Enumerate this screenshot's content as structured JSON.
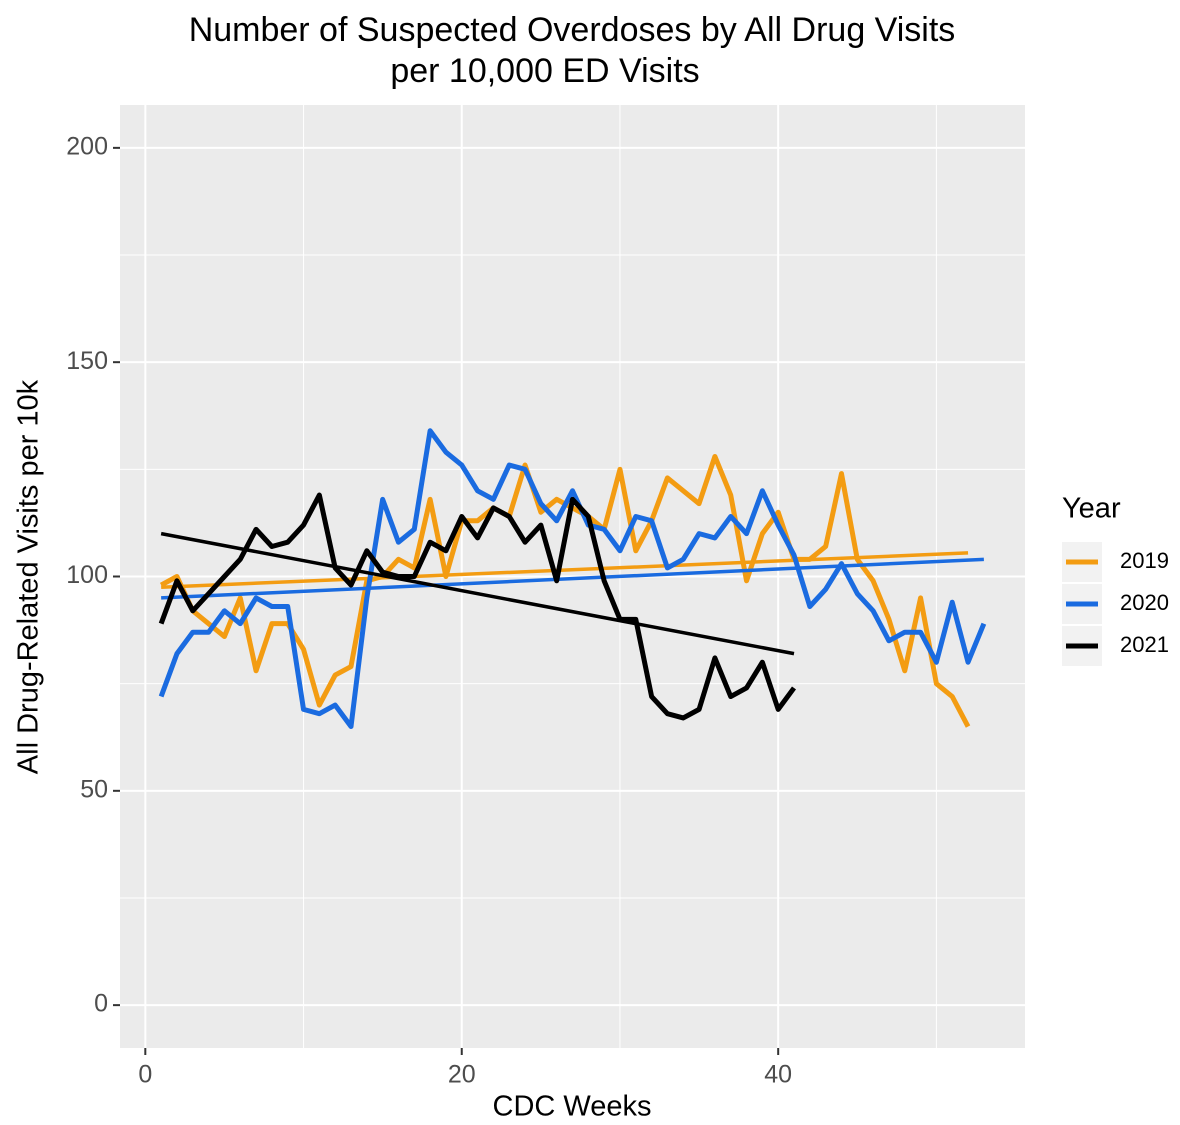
{
  "chart_data": {
    "type": "line",
    "title": [
      "Number of Suspected Overdoses by All Drug Visits",
      "per 10,000 ED Visits"
    ],
    "x_label": "CDC Weeks",
    "y_label": "All Drug-Related Visits per 10k",
    "legend_title": "Year",
    "legend_position": "right",
    "grid": true,
    "xlim": [
      -1.6,
      55.6
    ],
    "ylim": [
      -10,
      210
    ],
    "xticks": [
      0,
      20,
      40
    ],
    "yticks": [
      0,
      50,
      100,
      150,
      200
    ],
    "x_minor_ticks": [
      10,
      30,
      50
    ],
    "y_minor_ticks": [
      25,
      75,
      125,
      175
    ],
    "series": [
      {
        "name": "2019",
        "color": "#f39c12",
        "x": [
          1,
          2,
          3,
          4,
          5,
          6,
          7,
          8,
          9,
          10,
          11,
          12,
          13,
          14,
          15,
          16,
          17,
          18,
          19,
          20,
          21,
          22,
          23,
          24,
          25,
          26,
          27,
          28,
          29,
          30,
          31,
          32,
          33,
          34,
          35,
          36,
          37,
          38,
          39,
          40,
          41,
          42,
          43,
          44,
          45,
          46,
          47,
          48,
          49,
          50,
          51,
          52
        ],
        "values": [
          98,
          100,
          92,
          89,
          86,
          95,
          78,
          89,
          89,
          83,
          70,
          77,
          79,
          99,
          100,
          104,
          102,
          118,
          100,
          113,
          113,
          116,
          114,
          126,
          115,
          118,
          116,
          114,
          111,
          125,
          106,
          113,
          123,
          120,
          117,
          128,
          119,
          99,
          110,
          115,
          104,
          104,
          107,
          124,
          104,
          99,
          90,
          78,
          95,
          75,
          72,
          65
        ],
        "trend": [
          97.5,
          105.5
        ]
      },
      {
        "name": "2020",
        "color": "#1a6be0",
        "x": [
          1,
          2,
          3,
          4,
          5,
          6,
          7,
          8,
          9,
          10,
          11,
          12,
          13,
          14,
          15,
          16,
          17,
          18,
          19,
          20,
          21,
          22,
          23,
          24,
          25,
          26,
          27,
          28,
          29,
          30,
          31,
          32,
          33,
          34,
          35,
          36,
          37,
          38,
          39,
          40,
          41,
          42,
          43,
          44,
          45,
          46,
          47,
          48,
          49,
          50,
          51,
          52,
          53
        ],
        "values": [
          72,
          82,
          87,
          87,
          92,
          89,
          95,
          93,
          93,
          69,
          68,
          70,
          65,
          95,
          118,
          108,
          111,
          134,
          129,
          126,
          120,
          118,
          126,
          125,
          117,
          113,
          120,
          112,
          111,
          106,
          114,
          113,
          102,
          104,
          110,
          109,
          114,
          110,
          120,
          112,
          105,
          93,
          97,
          103,
          96,
          92,
          85,
          87,
          87,
          80,
          94,
          80,
          89
        ],
        "trend": [
          95,
          104
        ]
      },
      {
        "name": "2021",
        "color": "#000000",
        "x": [
          1,
          2,
          3,
          4,
          5,
          6,
          7,
          8,
          9,
          10,
          11,
          12,
          13,
          14,
          15,
          16,
          17,
          18,
          19,
          20,
          21,
          22,
          23,
          24,
          25,
          26,
          27,
          28,
          29,
          30,
          31,
          32,
          33,
          34,
          35,
          36,
          37,
          38,
          39,
          40,
          41
        ],
        "values": [
          89,
          99,
          92,
          96,
          100,
          104,
          111,
          107,
          108,
          112,
          119,
          102,
          98,
          106,
          101,
          100,
          100,
          108,
          106,
          114,
          109,
          116,
          114,
          108,
          112,
          99,
          118,
          114,
          99,
          90,
          90,
          72,
          68,
          67,
          69,
          81,
          72,
          74,
          80,
          69,
          74
        ],
        "trend": [
          110,
          82
        ]
      }
    ]
  }
}
